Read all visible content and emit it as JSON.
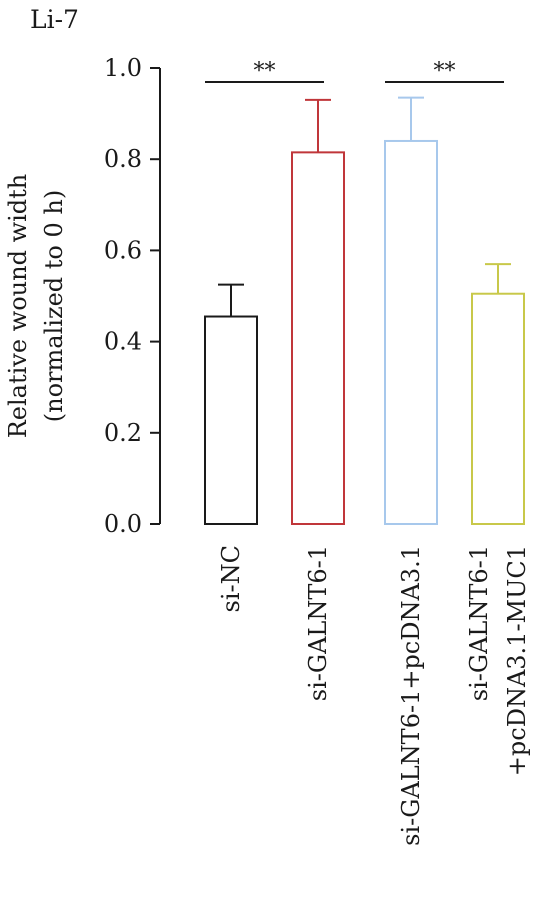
{
  "chart_data": {
    "type": "bar",
    "title": "Li-7",
    "ylabel_lines": [
      "Relative wound width",
      "(normalized to 0 h)"
    ],
    "ylim": [
      0,
      1.0
    ],
    "yticks": [
      "0.0",
      "0.2",
      "0.4",
      "0.6",
      "0.8",
      "1.0"
    ],
    "categories": [
      [
        "si-NC"
      ],
      [
        "si-GALNT6-1"
      ],
      [
        "si-GALNT6-1+pcDNA3.1"
      ],
      [
        "si-GALNT6-1",
        "+pcDNA3.1-MUC1"
      ]
    ],
    "values": [
      0.455,
      0.815,
      0.84,
      0.505
    ],
    "errors": [
      0.07,
      0.115,
      0.095,
      0.065
    ],
    "colors": [
      "#1a1a1a",
      "#c0363a",
      "#a7c8ec",
      "#c8c84a"
    ],
    "significance": [
      {
        "from": 0,
        "to": 1,
        "label": "**"
      },
      {
        "from": 2,
        "to": 3,
        "label": "**"
      }
    ],
    "grid": false
  }
}
